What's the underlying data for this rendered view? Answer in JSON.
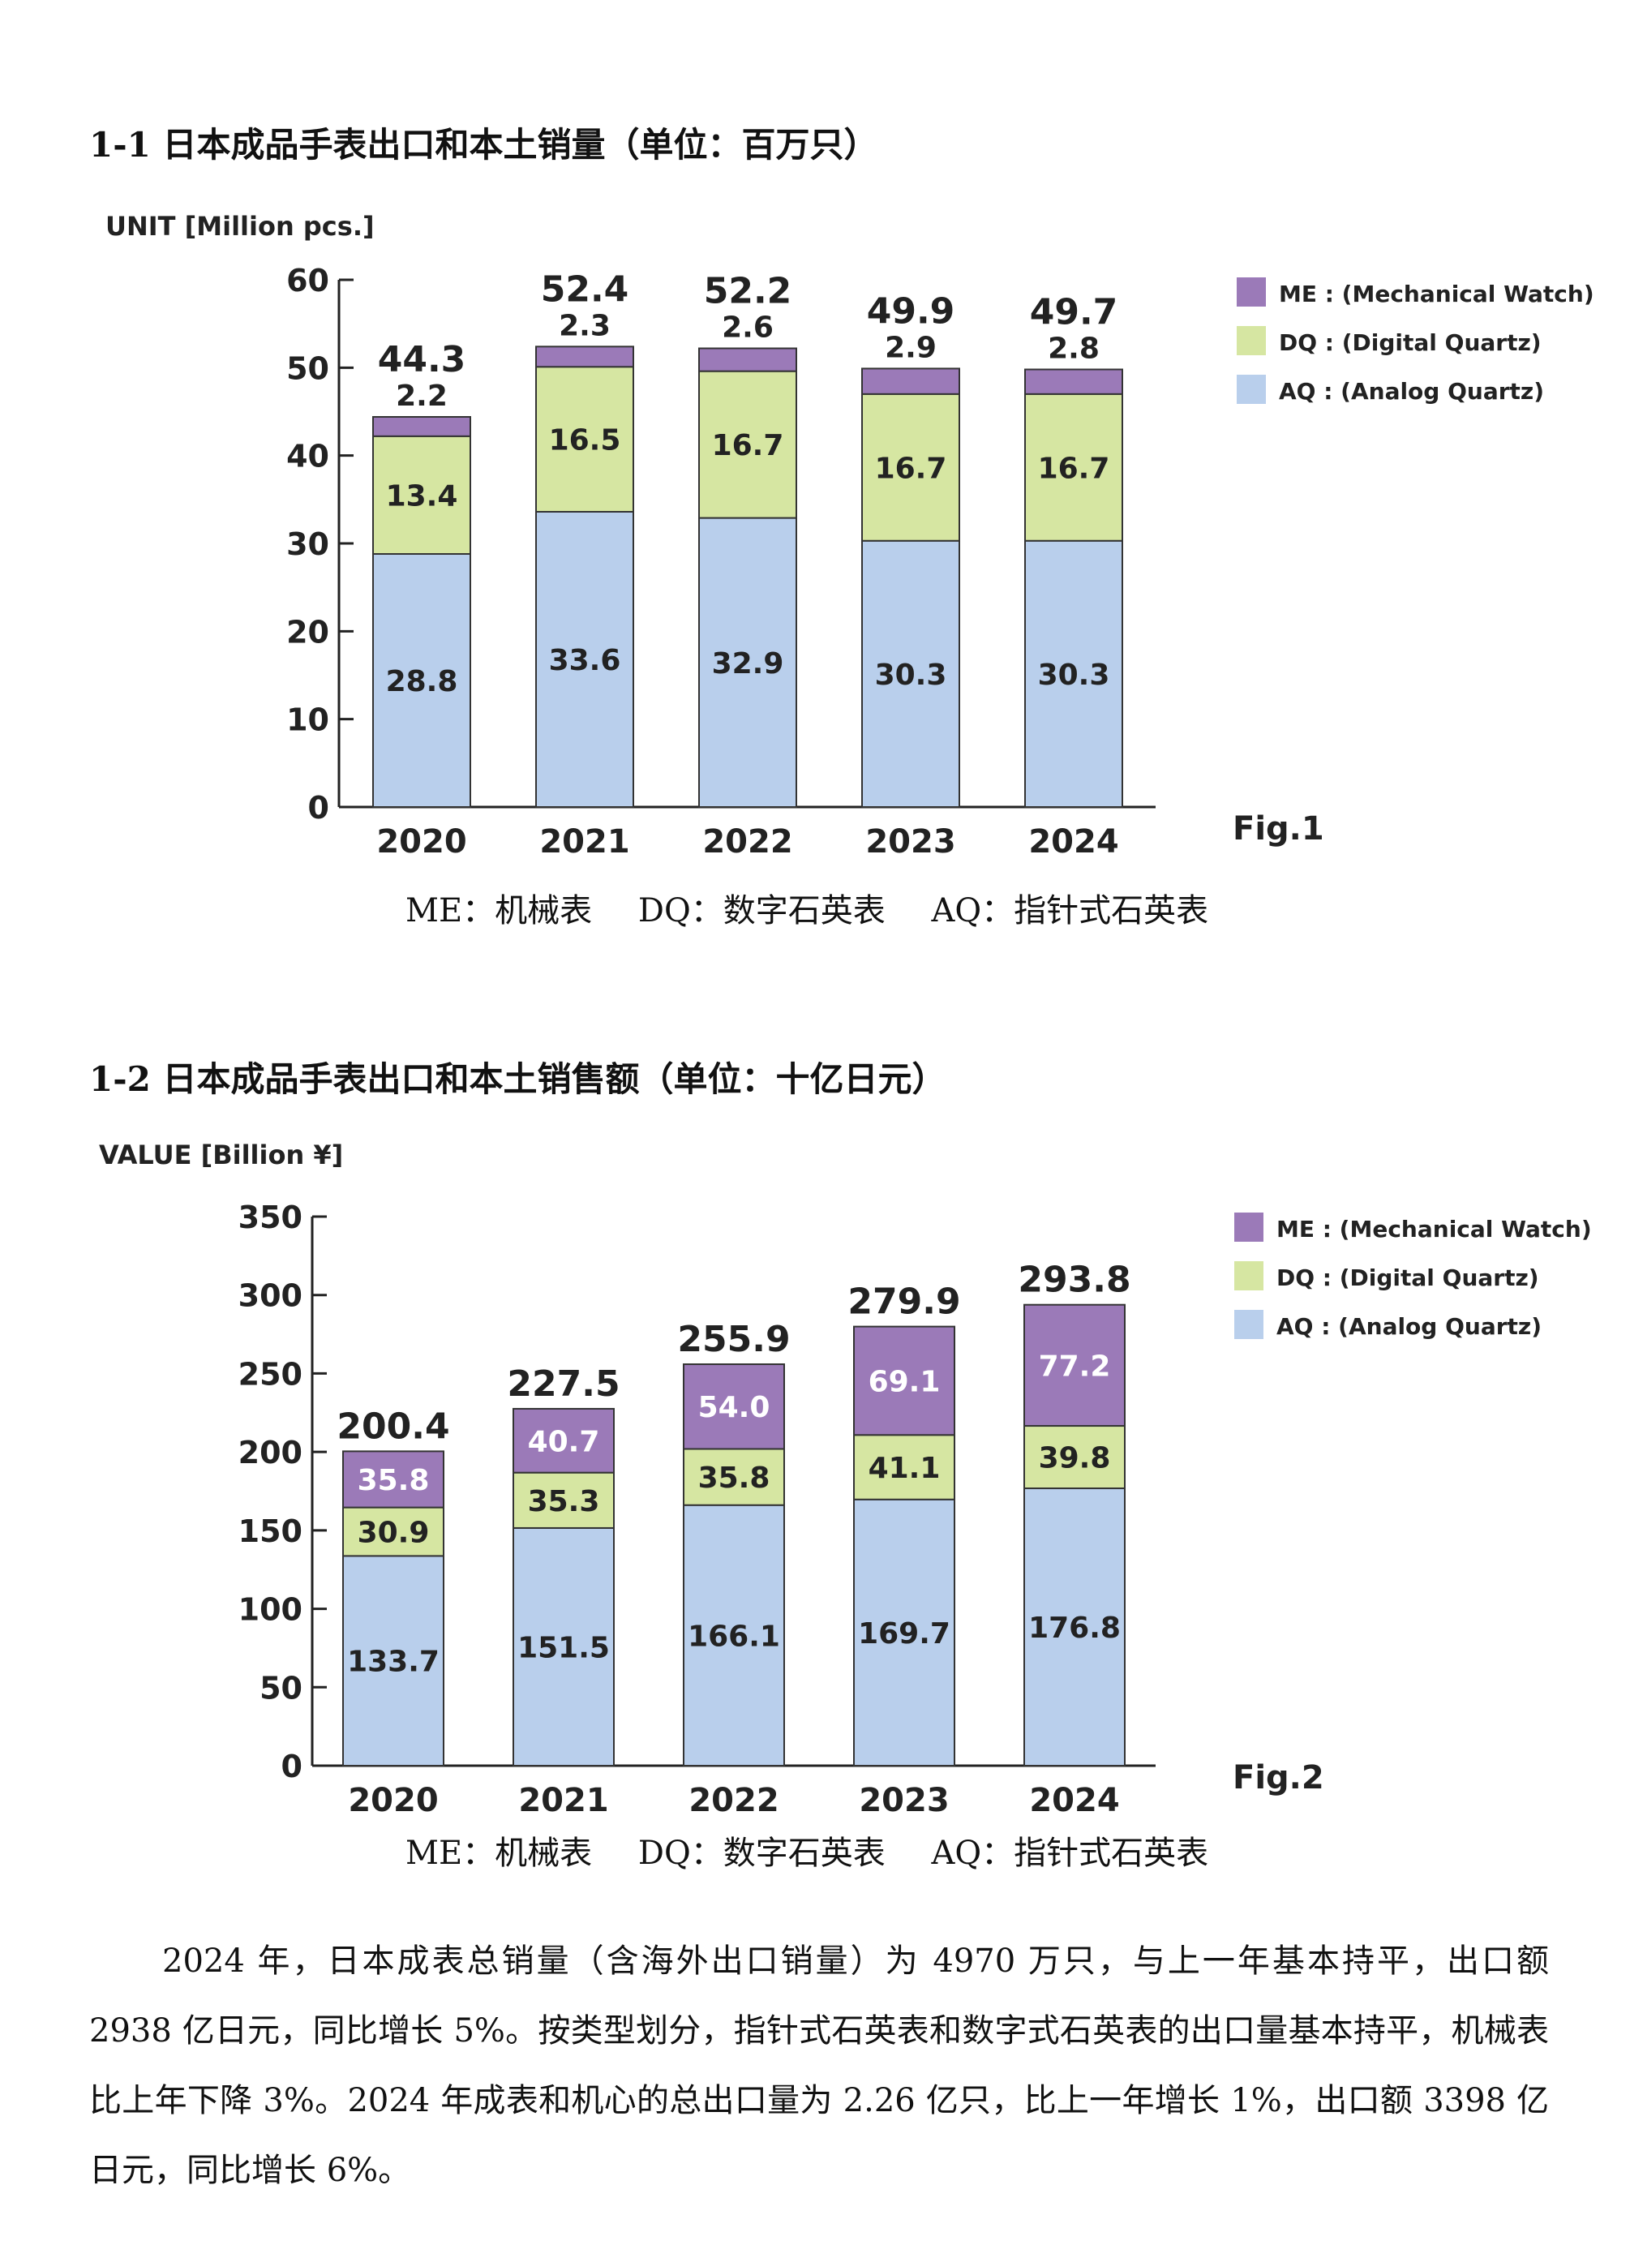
{
  "sections": [
    {
      "heading": "1-1 日本成品手表出口和本土销量（单位：百万只）",
      "caption": [
        "ME：机械表",
        "DQ：数字石英表",
        "AQ：指针式石英表"
      ]
    },
    {
      "heading": "1-2 日本成品手表出口和本土销售额（单位：十亿日元）",
      "caption": [
        "ME：机械表",
        "DQ：数字石英表",
        "AQ：指针式石英表"
      ]
    }
  ],
  "colors": {
    "AQ": "#b9cfec",
    "DQ": "#d6e6a2",
    "ME": "#9b7ab8"
  },
  "chart_data": [
    {
      "type": "bar",
      "stacked": true,
      "figure_label": "Fig.1",
      "ylabel": "UNIT [Million pcs.]",
      "ylim": [
        0,
        60
      ],
      "yticks": [
        "0",
        "10",
        "20",
        "30",
        "40",
        "50",
        "60"
      ],
      "categories": [
        "2020",
        "2021",
        "2022",
        "2023",
        "2024"
      ],
      "totals": [
        "44.3",
        "52.4",
        "52.2",
        "49.9",
        "49.7"
      ],
      "legend_position": "top-right",
      "series": [
        {
          "key": "AQ",
          "legend": "AQ : (Analog Quartz)",
          "values": [
            28.8,
            33.6,
            32.9,
            30.3,
            30.3
          ],
          "labels": [
            "28.8",
            "33.6",
            "32.9",
            "30.3",
            "30.3"
          ]
        },
        {
          "key": "DQ",
          "legend": "DQ : (Digital Quartz)",
          "values": [
            13.4,
            16.5,
            16.7,
            16.7,
            16.7
          ],
          "labels": [
            "13.4",
            "16.5",
            "16.7",
            "16.7",
            "16.7"
          ]
        },
        {
          "key": "ME",
          "legend": "ME : (Mechanical Watch)",
          "values": [
            2.2,
            2.3,
            2.6,
            2.9,
            2.8
          ],
          "labels": [
            "2.2",
            "2.3",
            "2.6",
            "2.9",
            "2.8"
          ]
        }
      ]
    },
    {
      "type": "bar",
      "stacked": true,
      "figure_label": "Fig.2",
      "ylabel": "VALUE [Billion ¥]",
      "ylim": [
        0,
        350
      ],
      "yticks": [
        "0",
        "50",
        "100",
        "150",
        "200",
        "250",
        "300",
        "350"
      ],
      "categories": [
        "2020",
        "2021",
        "2022",
        "2023",
        "2024"
      ],
      "totals": [
        "200.4",
        "227.5",
        "255.9",
        "279.9",
        "293.8"
      ],
      "legend_position": "top-right",
      "series": [
        {
          "key": "AQ",
          "legend": "AQ : (Analog Quartz)",
          "values": [
            133.7,
            151.5,
            166.1,
            169.7,
            176.8
          ],
          "labels": [
            "133.7",
            "151.5",
            "166.1",
            "169.7",
            "176.8"
          ]
        },
        {
          "key": "DQ",
          "legend": "DQ : (Digital Quartz)",
          "values": [
            30.9,
            35.3,
            35.8,
            41.1,
            39.8
          ],
          "labels": [
            "30.9",
            "35.3",
            "35.8",
            "41.1",
            "39.8"
          ]
        },
        {
          "key": "ME",
          "legend": "ME : (Mechanical Watch)",
          "values": [
            35.8,
            40.7,
            54.0,
            69.1,
            77.2
          ],
          "labels": [
            "35.8",
            "40.7",
            "54.0",
            "69.1",
            "77.2"
          ]
        }
      ]
    }
  ],
  "paragraph": "2024 年，日本成表总销量（含海外出口销量）为 4970 万只，与上一年基本持平，出口额 2938 亿日元，同比增长 5%。按类型划分，指针式石英表和数字式石英表的出口量基本持平，机械表比上年下降 3%。2024 年成表和机心的总出口量为 2.26 亿只，比上一年增长 1%，出口额 3398 亿日元，同比增长 6%。"
}
